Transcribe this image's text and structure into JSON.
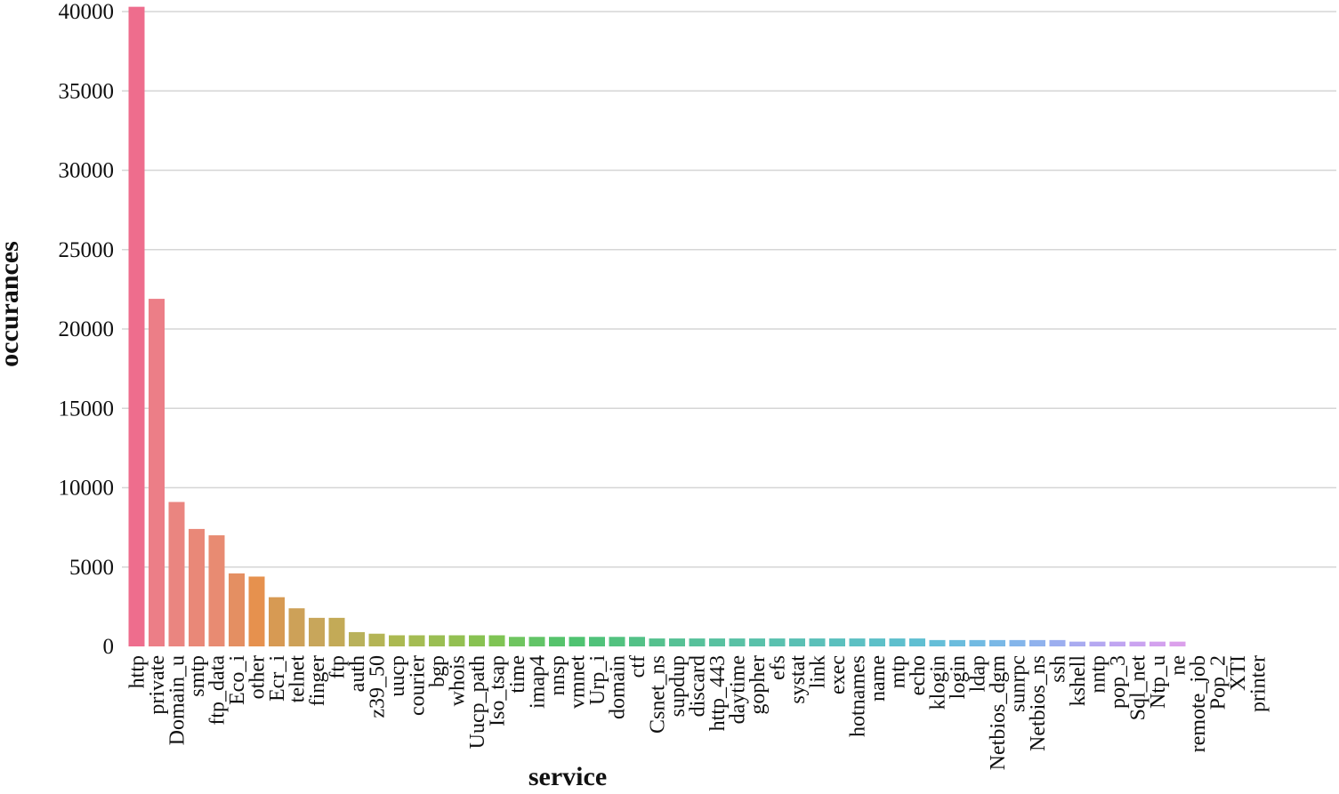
{
  "chart_data": {
    "type": "bar",
    "title": "",
    "xlabel": "service",
    "ylabel": "occurances",
    "ylim": [
      0,
      40000
    ],
    "yticks": [
      0,
      5000,
      10000,
      15000,
      20000,
      25000,
      30000,
      35000,
      40000
    ],
    "ytick_labels": [
      "0",
      "5000",
      "10000",
      "15000",
      "20000",
      "25000",
      "30000",
      "35000",
      "40000"
    ],
    "grid": true,
    "legend": "none",
    "categories": [
      "http",
      "private",
      "Domain_u",
      "smtp",
      "ftp_data",
      "Eco_i",
      "other",
      "Ecr_i",
      "telnet",
      "finger",
      "ftp",
      "auth",
      "z39_50",
      "uucp",
      "courier",
      "bgp",
      "whois",
      "Uucp_path",
      "Iso_tsap",
      "time",
      "imap4",
      "nnsp",
      "vmnet",
      "Urp_i",
      "domain",
      "ctf",
      "Csnet_ns",
      "supdup",
      "discard",
      "http_443",
      "daytime",
      "gopher",
      "efs",
      "systat",
      "link",
      "exec",
      "hotnames",
      "name",
      "mtp",
      "echo",
      "klogin",
      "login",
      "ldap",
      "Netbios_dgm",
      "sunrpc",
      "Netbios_ns",
      "ssh",
      "kshell",
      "nntp",
      "pop_3",
      "Sql_net",
      "Ntp_u",
      "ne",
      "remote_job",
      "Pop_2",
      "XTI",
      "printer"
    ],
    "values": [
      40300,
      21900,
      9100,
      7400,
      7000,
      4600,
      4400,
      3100,
      2400,
      1800,
      1800,
      900,
      800,
      700,
      700,
      700,
      700,
      700,
      700,
      600,
      600,
      600,
      600,
      600,
      600,
      600,
      500,
      500,
      500,
      500,
      500,
      500,
      500,
      500,
      500,
      500,
      500,
      500,
      500,
      500,
      400,
      400,
      400,
      400,
      400,
      400,
      400,
      300,
      300,
      300,
      300,
      300,
      300,
      0,
      0,
      0,
      0
    ],
    "colors": [
      "#ee6d8d",
      "#ec7e87",
      "#ea8580",
      "#e98878",
      "#e88b72",
      "#e48f62",
      "#e6914e",
      "#d79a53",
      "#cda158",
      "#c8a65b",
      "#c3aa57",
      "#b9b15b",
      "#b4b455",
      "#abb951",
      "#a4bc53",
      "#9abe53",
      "#93c052",
      "#88c252",
      "#7fc454",
      "#6fc560",
      "#62c467",
      "#56c36c",
      "#4fc371",
      "#50c27a",
      "#52c27f",
      "#53c187",
      "#55c18e",
      "#56c195",
      "#57c19b",
      "#58c1a0",
      "#59c1a5",
      "#59c1aa",
      "#5ac1af",
      "#5ac0b4",
      "#5bc0b9",
      "#5bc0be",
      "#5cc0c3",
      "#5dc0c8",
      "#5ebfcd",
      "#60bfd2",
      "#65bed8",
      "#6bbcdd",
      "#72bae2",
      "#7ab8e6",
      "#84b5ea",
      "#90b2ed",
      "#9caeef",
      "#a9abf0",
      "#b5a8f1",
      "#c0a5f1",
      "#caa3f0",
      "#d3a1ee",
      "#dba0eb",
      "#e3a0e7",
      "#e9a1e2",
      "#eea3dc",
      "#f0a6d5"
    ]
  }
}
